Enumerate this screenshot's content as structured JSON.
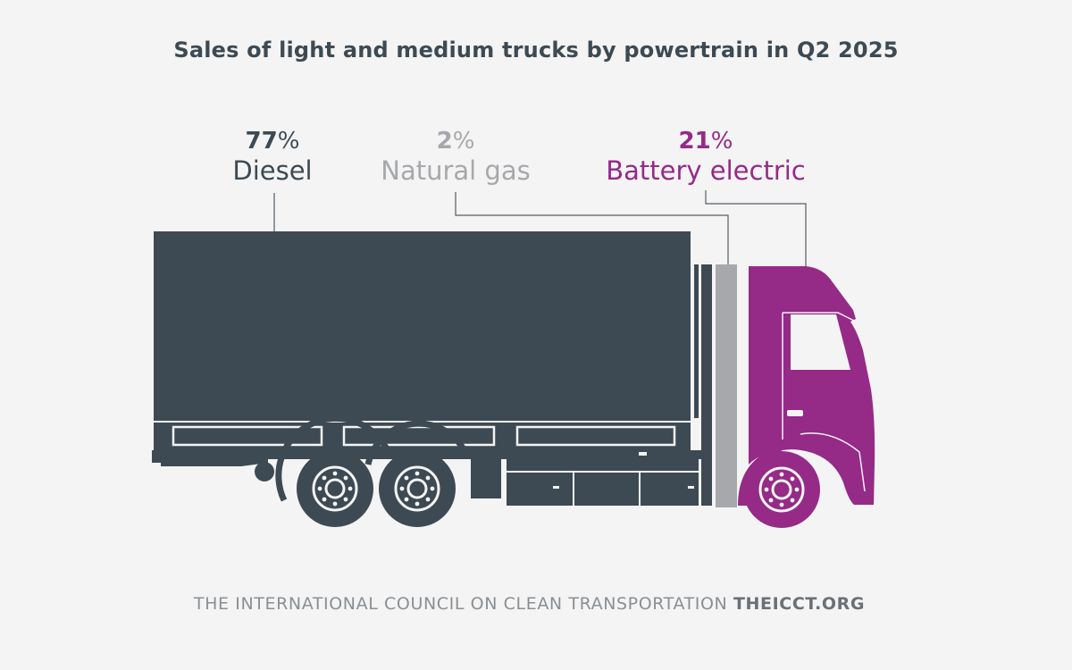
{
  "colors": {
    "background": "#f4f4f4",
    "diesel": "#3d4a53",
    "natural_gas": "#a6a8ab",
    "battery_electric": "#952a87",
    "footer_text": "#8a8f93"
  },
  "chart_data": {
    "type": "pictorial-share",
    "title": "Sales of light and medium trucks by powertrain in Q2 2025",
    "unit": "%",
    "categories": [
      "Diesel",
      "Natural gas",
      "Battery electric"
    ],
    "values": [
      77,
      2,
      21
    ],
    "labels": [
      "77",
      "2",
      "21"
    ],
    "category_colors": [
      "#3d4a53",
      "#a6a8ab",
      "#952a87"
    ]
  },
  "footer": {
    "org": "THE INTERNATIONAL COUNCIL ON CLEAN TRANSPORTATION",
    "url": "THEICCT.ORG"
  }
}
